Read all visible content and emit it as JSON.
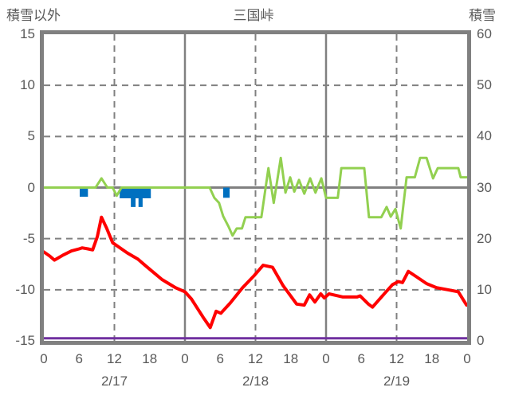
{
  "titles": {
    "left": "積雪以外",
    "center": "三国峠",
    "right": "積雪"
  },
  "left_axis": {
    "values": [
      15,
      10,
      5,
      0,
      -5,
      -10,
      -15
    ],
    "labels": [
      "15",
      "10",
      "5",
      "0",
      "-5",
      "-10",
      "-15"
    ]
  },
  "right_axis": {
    "values": [
      60,
      50,
      40,
      30,
      20,
      10,
      0
    ],
    "labels": [
      "60",
      "50",
      "40",
      "30",
      "20",
      "10",
      "0"
    ]
  },
  "x_axis": {
    "hour_labels": [
      "0",
      "6",
      "12",
      "18",
      "0",
      "6",
      "12",
      "18",
      "0",
      "6",
      "12",
      "18",
      "0"
    ],
    "date_labels": [
      "2/17",
      "2/18",
      "2/19"
    ]
  },
  "colors": {
    "red_line": "#ff0000",
    "green_line": "#92d050",
    "blue_bars": "#0070c0",
    "purple_line": "#7030a0",
    "grid": "#808080",
    "text": "#595959"
  },
  "chart_data": {
    "type": "line",
    "title": "三国峠",
    "x_unit": "hours from 2/17 00:00 to 2/20 00:00",
    "x_range": [
      0,
      72
    ],
    "left_ylim": [
      -15,
      15
    ],
    "right_ylim": [
      0,
      60
    ],
    "gridlines": {
      "horizontal_dashed_left_values": [
        10,
        5,
        -5,
        -10
      ],
      "vertical_dashed_hours": [
        12,
        36,
        60
      ],
      "vertical_solid_hours": [
        24,
        48
      ],
      "zero_line_left_value": 0
    },
    "series": [
      {
        "name": "red-line",
        "kind": "line",
        "axis": "left",
        "color": "#ff0000",
        "width": 4,
        "points": [
          [
            0,
            -6.3
          ],
          [
            1,
            -6.7
          ],
          [
            1.8,
            -7.1
          ],
          [
            3.3,
            -6.6
          ],
          [
            4.7,
            -6.2
          ],
          [
            6,
            -6.0
          ],
          [
            6.5,
            -5.9
          ],
          [
            7.5,
            -6.0
          ],
          [
            8.3,
            -6.1
          ],
          [
            9.1,
            -4.8
          ],
          [
            9.8,
            -2.9
          ],
          [
            10.7,
            -4.0
          ],
          [
            11.7,
            -5.4
          ],
          [
            14.2,
            -6.4
          ],
          [
            16,
            -7.0
          ],
          [
            17.4,
            -7.7
          ],
          [
            20.1,
            -9.0
          ],
          [
            22.4,
            -9.8
          ],
          [
            24,
            -10.2
          ],
          [
            25.1,
            -10.9
          ],
          [
            27.1,
            -12.7
          ],
          [
            28.3,
            -13.7
          ],
          [
            29.3,
            -12.1
          ],
          [
            30.1,
            -12.3
          ],
          [
            31.7,
            -11.3
          ],
          [
            33.8,
            -9.8
          ],
          [
            35.8,
            -8.6
          ],
          [
            37.3,
            -7.6
          ],
          [
            38.9,
            -7.8
          ],
          [
            40.7,
            -9.6
          ],
          [
            43.0,
            -11.4
          ],
          [
            44.3,
            -11.5
          ],
          [
            45.2,
            -10.5
          ],
          [
            46.1,
            -11.2
          ],
          [
            47.1,
            -10.4
          ],
          [
            47.7,
            -10.8
          ],
          [
            48.5,
            -10.4
          ],
          [
            50.8,
            -10.7
          ],
          [
            53.3,
            -10.7
          ],
          [
            53.8,
            -10.6
          ],
          [
            55.2,
            -11.4
          ],
          [
            55.9,
            -11.7
          ],
          [
            57.9,
            -10.4
          ],
          [
            59.3,
            -9.5
          ],
          [
            60.3,
            -9.2
          ],
          [
            61.0,
            -9.3
          ],
          [
            62.0,
            -8.2
          ],
          [
            63.3,
            -8.7
          ],
          [
            65.1,
            -9.4
          ],
          [
            66.8,
            -9.8
          ],
          [
            68.7,
            -10.0
          ],
          [
            70.5,
            -10.2
          ],
          [
            71.9,
            -11.5
          ]
        ]
      },
      {
        "name": "green-line",
        "kind": "line",
        "axis": "left",
        "color": "#92d050",
        "width": 3,
        "points": [
          [
            0,
            0
          ],
          [
            8.8,
            0
          ],
          [
            9.8,
            0.9
          ],
          [
            10.8,
            0
          ],
          [
            11.7,
            0
          ],
          [
            12.4,
            -0.8
          ],
          [
            13.2,
            0
          ],
          [
            28.2,
            0
          ],
          [
            29,
            -1.0
          ],
          [
            29.8,
            -1.5
          ],
          [
            30.5,
            -2.8
          ],
          [
            31.4,
            -3.8
          ],
          [
            32.1,
            -4.7
          ],
          [
            32.8,
            -4.0
          ],
          [
            33.7,
            -4.0
          ],
          [
            34.3,
            -2.9
          ],
          [
            37.0,
            -2.9
          ],
          [
            38.2,
            1.9
          ],
          [
            39.1,
            -1.5
          ],
          [
            40.3,
            2.9
          ],
          [
            41.1,
            -0.5
          ],
          [
            41.9,
            1.0
          ],
          [
            42.6,
            -0.4
          ],
          [
            43.4,
            0.75
          ],
          [
            44.3,
            -0.6
          ],
          [
            45.3,
            0.9
          ],
          [
            46.2,
            -0.5
          ],
          [
            47.2,
            0.9
          ],
          [
            48.0,
            -1.0
          ],
          [
            50.0,
            -1.0
          ],
          [
            50.6,
            1.9
          ],
          [
            54.5,
            1.9
          ],
          [
            55.3,
            -2.9
          ],
          [
            57.4,
            -2.9
          ],
          [
            58.3,
            -1.9
          ],
          [
            59.0,
            -2.85
          ],
          [
            59.8,
            -2.1
          ],
          [
            60.7,
            -4.0
          ],
          [
            61.7,
            1.0
          ],
          [
            63.1,
            1.0
          ],
          [
            64.0,
            2.9
          ],
          [
            65.1,
            2.9
          ],
          [
            66.2,
            0.9
          ],
          [
            67.0,
            1.9
          ],
          [
            70.5,
            1.9
          ],
          [
            70.9,
            1.0
          ],
          [
            72,
            1.0
          ]
        ]
      },
      {
        "name": "blue-bars",
        "kind": "bar",
        "axis": "left",
        "color": "#0070c0",
        "bars": [
          {
            "h1": 6.1,
            "h2": 7.5,
            "v": -0.9
          },
          {
            "h1": 12.9,
            "h2": 18.2,
            "v": -1.05
          },
          {
            "h1": 14.8,
            "h2": 15.6,
            "v": -1.9
          },
          {
            "h1": 16.1,
            "h2": 16.8,
            "v": -1.9
          },
          {
            "h1": 30.5,
            "h2": 31.6,
            "v": -1.0
          }
        ]
      },
      {
        "name": "purple-line",
        "kind": "line",
        "axis": "right",
        "color": "#7030a0",
        "width": 3,
        "points": [
          [
            0,
            0.5
          ],
          [
            72,
            0.5
          ]
        ]
      }
    ]
  }
}
